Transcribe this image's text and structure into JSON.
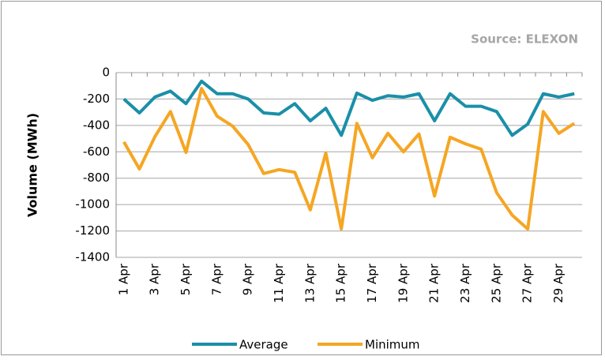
{
  "chart_data": {
    "type": "line",
    "source": "Source: ELEXON",
    "y_label": "Volume (MWh)",
    "categories": [
      "1 Apr",
      null,
      "3 Apr",
      null,
      "5 Apr",
      null,
      "7 Apr",
      null,
      "9 Apr",
      null,
      "11 Apr",
      null,
      "13 Apr",
      null,
      "15 Apr",
      null,
      "17 Apr",
      null,
      "19 Apr",
      null,
      "21 Apr",
      null,
      "23 Apr",
      null,
      "25 Apr",
      null,
      "27 Apr",
      null,
      "29 Apr",
      null
    ],
    "series": [
      {
        "name": "Average",
        "color": "#1a8fa8",
        "values": [
          -200,
          -305,
          -185,
          -140,
          -235,
          -65,
          -160,
          -160,
          -200,
          -305,
          -315,
          -235,
          -365,
          -270,
          -475,
          -155,
          -210,
          -175,
          -185,
          -160,
          -365,
          -160,
          -255,
          -255,
          -295,
          -475,
          -390,
          -160,
          -185,
          -160
        ]
      },
      {
        "name": "Minimum",
        "color": "#f5a623",
        "values": [
          -525,
          -730,
          -485,
          -295,
          -605,
          -120,
          -330,
          -405,
          -545,
          -765,
          -735,
          -755,
          -1040,
          -610,
          -1185,
          -385,
          -645,
          -460,
          -600,
          -465,
          -935,
          -490,
          -540,
          -580,
          -910,
          -1080,
          -1185,
          -295,
          -460,
          -385
        ]
      }
    ],
    "ylim": [
      -1400,
      0
    ],
    "yticks": [
      0,
      -200,
      -400,
      -600,
      -800,
      -1000,
      -1200,
      -1400
    ],
    "grid": true
  }
}
